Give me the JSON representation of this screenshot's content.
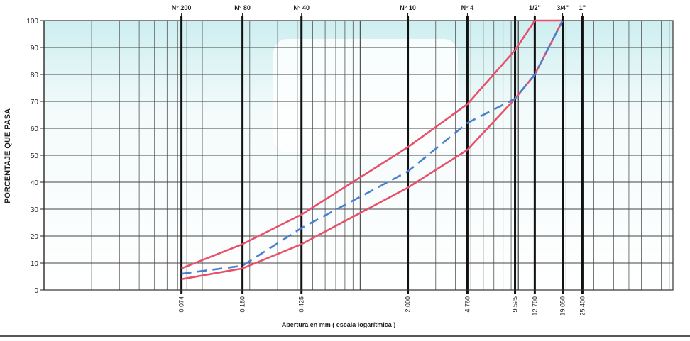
{
  "chart_data": {
    "type": "line",
    "y_label": "PORCENTAJE QUE PASA",
    "x_label": "Abertura en mm  ( escala logarítmica )",
    "log_x": true,
    "grid": true,
    "xlim": [
      0.01,
      100
    ],
    "ylim": [
      0,
      100
    ],
    "yticks": [
      0,
      10,
      20,
      30,
      40,
      50,
      60,
      70,
      80,
      90,
      100
    ],
    "xticks": [
      0.074,
      {
        "value": 0.18,
        "label": "0.180"
      },
      0.425,
      {
        "value": 2,
        "label": "2.000"
      },
      {
        "value": 4.76,
        "label": "4.760"
      },
      9.525,
      {
        "value": 12.7,
        "label": "12.700"
      },
      {
        "value": 19.05,
        "label": "19.050"
      },
      {
        "value": 25.4,
        "label": "25.400"
      }
    ],
    "x2ticks": [
      {
        "value": 0.074,
        "label": "N° 200"
      },
      {
        "value": 0.18,
        "label": "N° 80"
      },
      {
        "value": 0.425,
        "label": "N° 40"
      },
      {
        "value": 2,
        "label": "N° 10"
      },
      {
        "value": 4.76,
        "label": "N° 4"
      },
      {
        "value": 12.7,
        "label": "1/2\""
      },
      {
        "value": 19.05,
        "label": "3/4\""
      },
      {
        "value": 25.4,
        "label": "1\""
      }
    ],
    "x": [
      0.074,
      0.18,
      0.425,
      2,
      4.76,
      9.525,
      12.7,
      19.05
    ],
    "series": [
      {
        "color": "#e8506a",
        "dashed": false,
        "values": [
          8,
          17,
          28,
          53,
          69,
          89,
          100,
          100
        ]
      },
      {
        "color": "#e8506a",
        "dashed": false,
        "values": [
          4,
          8,
          17,
          38,
          52,
          71,
          80,
          100
        ]
      },
      {
        "color": "#4a7fd0",
        "dashed": true,
        "values": [
          6,
          9,
          23,
          44,
          62,
          71,
          80,
          100
        ]
      }
    ]
  }
}
